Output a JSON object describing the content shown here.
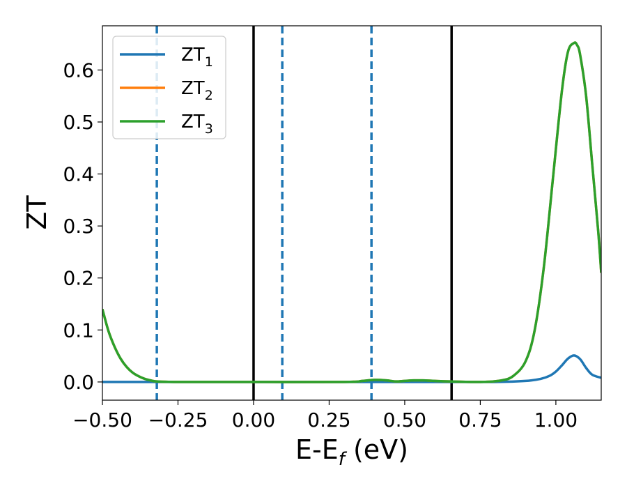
{
  "chart_data": {
    "type": "line",
    "xlabel": "E-E_f (eV)",
    "ylabel": "ZT",
    "xlim": [
      -0.5,
      1.15
    ],
    "ylim": [
      -0.035,
      0.685
    ],
    "x_ticks": [
      -0.5,
      -0.25,
      0.0,
      0.25,
      0.5,
      0.75,
      1.0
    ],
    "x_tick_labels": [
      "−0.50",
      "−0.25",
      "0.00",
      "0.25",
      "0.50",
      "0.75",
      "1.00"
    ],
    "y_ticks": [
      0.0,
      0.1,
      0.2,
      0.3,
      0.4,
      0.5,
      0.6
    ],
    "y_tick_labels": [
      "0.0",
      "0.1",
      "0.2",
      "0.3",
      "0.4",
      "0.5",
      "0.6"
    ],
    "grid": false,
    "legend_position": "top-left",
    "vertical_lines": [
      {
        "x": -0.32,
        "style": "dashed",
        "color": "#1f77b4"
      },
      {
        "x": 0.0,
        "style": "solid",
        "color": "#000000"
      },
      {
        "x": 0.095,
        "style": "dashed",
        "color": "#1f77b4"
      },
      {
        "x": 0.39,
        "style": "dashed",
        "color": "#1f77b4"
      },
      {
        "x": 0.655,
        "style": "solid",
        "color": "#000000"
      }
    ],
    "series": [
      {
        "name": "ZT_1",
        "label_main": "ZT",
        "label_sub": "1",
        "color": "#1f77b4",
        "x": [
          -0.5,
          -0.3,
          0.0,
          0.3,
          0.6,
          0.8,
          0.9,
          0.95,
          0.98,
          1.0,
          1.02,
          1.04,
          1.06,
          1.08,
          1.1,
          1.12,
          1.15
        ],
        "y": [
          0.0,
          0.0,
          0.0,
          0.0,
          0.0,
          0.0,
          0.002,
          0.006,
          0.012,
          0.02,
          0.032,
          0.045,
          0.051,
          0.044,
          0.027,
          0.014,
          0.008
        ]
      },
      {
        "name": "ZT_2",
        "label_main": "ZT",
        "label_sub": "2",
        "color": "#ff7f0e",
        "x": [
          -0.5,
          -0.48,
          -0.46,
          -0.44,
          -0.42,
          -0.4,
          -0.38,
          -0.36,
          -0.34,
          -0.32,
          -0.25,
          0.0,
          0.3,
          0.36,
          0.4,
          0.44,
          0.47,
          0.5,
          0.53,
          0.56,
          0.6,
          0.65,
          0.75,
          0.82,
          0.86,
          0.9,
          0.93,
          0.96,
          0.99,
          1.02,
          1.04,
          1.06,
          1.07,
          1.08,
          1.1,
          1.12,
          1.14,
          1.15
        ],
        "y": [
          0.14,
          0.098,
          0.068,
          0.045,
          0.029,
          0.018,
          0.011,
          0.006,
          0.003,
          0.001,
          0.0,
          0.0,
          0.0,
          0.002,
          0.004,
          0.003,
          0.001,
          0.002,
          0.003,
          0.003,
          0.002,
          0.001,
          0.0,
          0.003,
          0.012,
          0.04,
          0.1,
          0.22,
          0.39,
          0.56,
          0.635,
          0.652,
          0.648,
          0.63,
          0.55,
          0.42,
          0.29,
          0.21
        ]
      },
      {
        "name": "ZT_3",
        "label_main": "ZT",
        "label_sub": "3",
        "color": "#2ca02c",
        "x": [
          -0.5,
          -0.48,
          -0.46,
          -0.44,
          -0.42,
          -0.4,
          -0.38,
          -0.36,
          -0.34,
          -0.32,
          -0.25,
          0.0,
          0.3,
          0.36,
          0.4,
          0.44,
          0.47,
          0.5,
          0.53,
          0.56,
          0.6,
          0.65,
          0.75,
          0.82,
          0.86,
          0.9,
          0.93,
          0.96,
          0.99,
          1.02,
          1.04,
          1.06,
          1.07,
          1.08,
          1.1,
          1.12,
          1.14,
          1.15
        ],
        "y": [
          0.14,
          0.098,
          0.068,
          0.045,
          0.029,
          0.018,
          0.011,
          0.006,
          0.003,
          0.001,
          0.0,
          0.0,
          0.0,
          0.002,
          0.004,
          0.003,
          0.001,
          0.002,
          0.003,
          0.003,
          0.002,
          0.001,
          0.0,
          0.003,
          0.012,
          0.04,
          0.1,
          0.22,
          0.39,
          0.56,
          0.635,
          0.652,
          0.648,
          0.63,
          0.55,
          0.42,
          0.29,
          0.21
        ]
      }
    ]
  }
}
